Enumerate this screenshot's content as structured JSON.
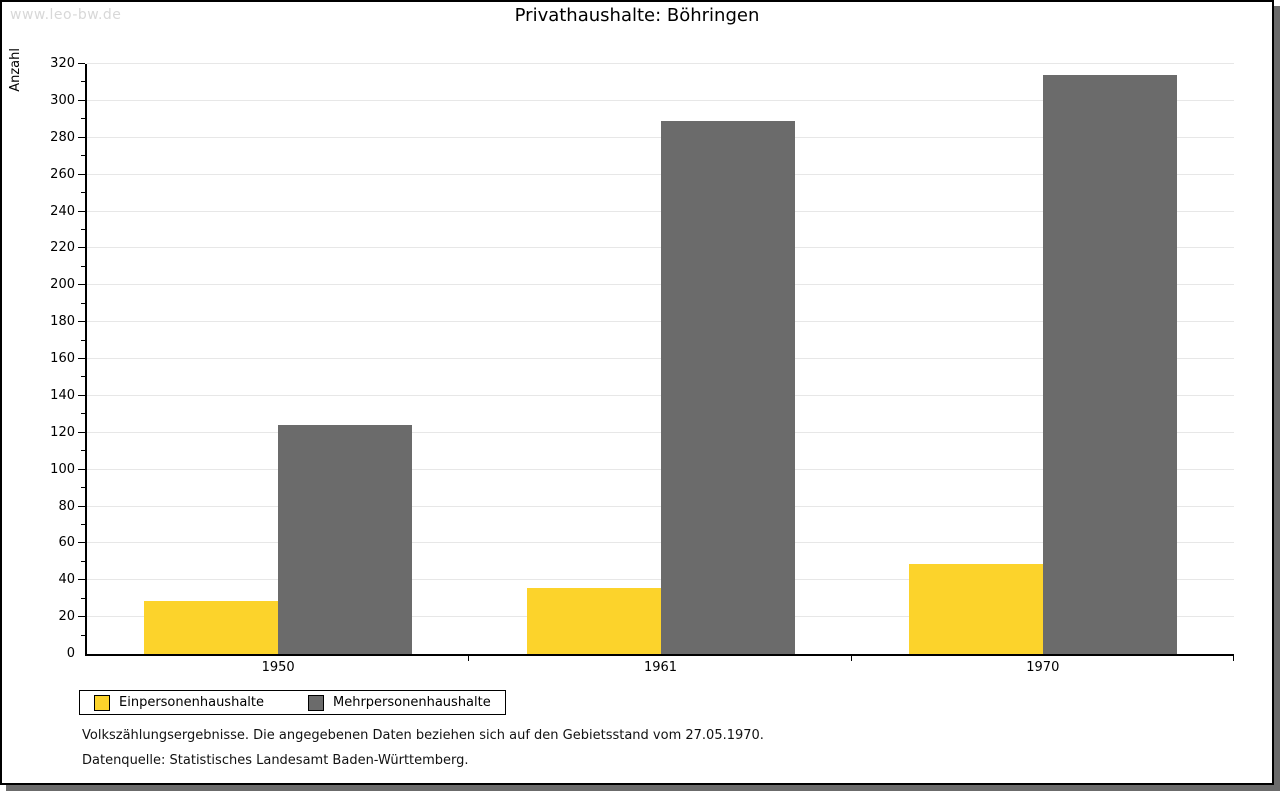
{
  "watermark": "www.leo-bw.de",
  "title": "Privathaushalte: Böhringen",
  "footnotes": [
    "Volkszählungsergebnisse. Die angegebenen Daten beziehen sich auf den Gebietsstand vom 27.05.1970.",
    "Datenquelle: Statistisches Landesamt Baden-Württemberg."
  ],
  "colors": {
    "bar_yellow": "#fcd32b",
    "bar_gray": "#6b6b6b",
    "gridline": "#e7e7e7",
    "axis": "#000000",
    "watermark_text": "#d8d8d8",
    "shadow": "#6b6b6b"
  },
  "chart_data": {
    "type": "bar",
    "title": "Privathaushalte: Böhringen",
    "xlabel": "",
    "ylabel": "Anzahl",
    "categories": [
      "1950",
      "1961",
      "1970"
    ],
    "series": [
      {
        "name": "Einpersonenhaushalte",
        "color": "#fcd32b",
        "values": [
          29,
          36,
          49
        ]
      },
      {
        "name": "Mehrpersonenhaushalte",
        "color": "#6b6b6b",
        "values": [
          124,
          289,
          314
        ]
      }
    ],
    "ylim": [
      0,
      320
    ],
    "ytick_step": 20,
    "ytick_minor_step": 10,
    "grid": true,
    "legend_position": "bottom-left"
  }
}
